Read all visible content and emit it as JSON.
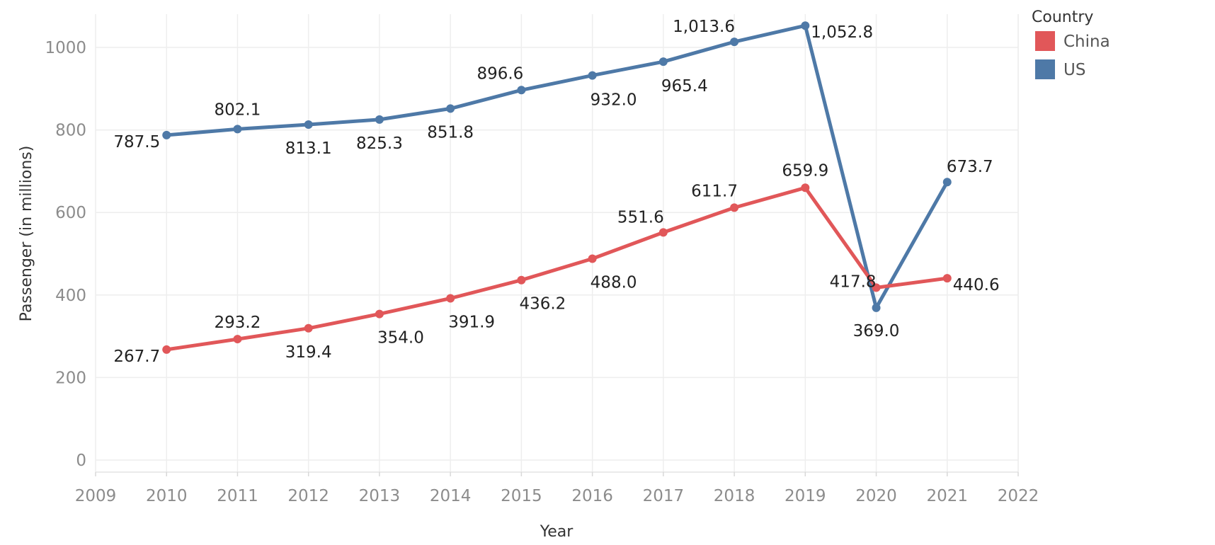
{
  "chart_data": {
    "type": "line",
    "title": "",
    "xlabel": "Year",
    "ylabel": "Passenger (in millions)",
    "x": [
      2010,
      2011,
      2012,
      2013,
      2014,
      2015,
      2016,
      2017,
      2018,
      2019,
      2020,
      2021
    ],
    "x_ticks": [
      "2009",
      "2010",
      "2011",
      "2012",
      "2013",
      "2014",
      "2015",
      "2016",
      "2017",
      "2018",
      "2019",
      "2020",
      "2021",
      "2022"
    ],
    "xlim": [
      2009,
      2022
    ],
    "y_ticks": [
      "0",
      "200",
      "400",
      "600",
      "800",
      "1000"
    ],
    "ylim": [
      0,
      1000
    ],
    "grid": true,
    "legend": {
      "title": "Country",
      "placement": "top-right",
      "entries": [
        "China",
        "US"
      ]
    },
    "series": [
      {
        "name": "US",
        "color": "#4e79a7",
        "values": [
          787.5,
          802.1,
          813.1,
          825.3,
          851.8,
          896.6,
          932.0,
          965.4,
          1013.6,
          1052.8,
          369.0,
          673.7
        ],
        "labels": [
          "787.5",
          "802.1",
          "813.1",
          "825.3",
          "851.8",
          "896.6",
          "932.0",
          "965.4",
          "1,013.6",
          "1,052.8",
          "369.0",
          "673.7"
        ]
      },
      {
        "name": "China",
        "color": "#e15759",
        "values": [
          267.7,
          293.2,
          319.4,
          354.0,
          391.9,
          436.2,
          488.0,
          551.6,
          611.7,
          659.9,
          417.8,
          440.6
        ],
        "labels": [
          "267.7",
          "293.2",
          "319.4",
          "354.0",
          "391.9",
          "436.2",
          "488.0",
          "551.6",
          "611.7",
          "659.9",
          "417.8",
          "440.6"
        ]
      }
    ]
  }
}
